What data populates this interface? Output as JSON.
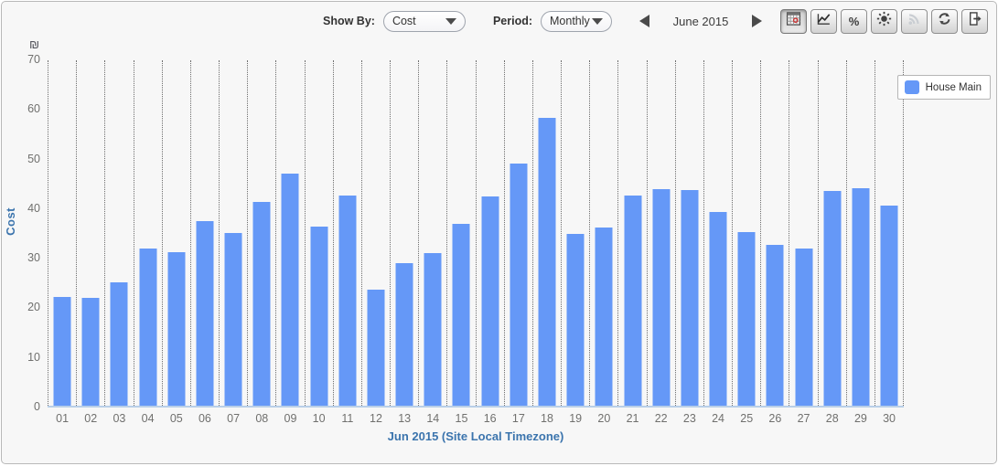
{
  "toolbar": {
    "show_by_label": "Show By:",
    "show_by_value": "Cost",
    "period_label": "Period:",
    "period_value": "Monthly",
    "date_label": "June 2015",
    "buttons": [
      {
        "name": "table-view-button",
        "icon": "table-grid-icon",
        "state": "active"
      },
      {
        "name": "line-chart-view-button",
        "icon": "line-chart-icon",
        "state": "normal"
      },
      {
        "name": "percent-view-button",
        "icon": "percent-icon",
        "state": "normal"
      },
      {
        "name": "weather-button",
        "icon": "sun-icon",
        "state": "normal"
      },
      {
        "name": "live-feed-button",
        "icon": "rss-icon",
        "state": "disabled"
      },
      {
        "name": "refresh-button",
        "icon": "refresh-icon",
        "state": "normal"
      },
      {
        "name": "export-button",
        "icon": "export-icon",
        "state": "normal"
      }
    ],
    "percent_glyph": "%"
  },
  "legend": {
    "position": "right",
    "items": [
      {
        "label": "House Main",
        "color": "#6598f7"
      }
    ]
  },
  "chart_data": {
    "type": "bar",
    "title": "",
    "xlabel": "Jun 2015 (Site Local Timezone)",
    "ylabel": "Cost",
    "currency_symbol": "₪",
    "ylim": [
      0,
      70
    ],
    "yticks": [
      0,
      10,
      20,
      30,
      40,
      50,
      60,
      70
    ],
    "grid": "vertical-dotted",
    "legend_position": "right",
    "categories": [
      "01",
      "02",
      "03",
      "04",
      "05",
      "06",
      "07",
      "08",
      "09",
      "10",
      "11",
      "12",
      "13",
      "14",
      "15",
      "16",
      "17",
      "18",
      "19",
      "20",
      "21",
      "22",
      "23",
      "24",
      "25",
      "26",
      "27",
      "28",
      "29",
      "30"
    ],
    "series": [
      {
        "name": "House Main",
        "color": "#6598f7",
        "values": [
          22.0,
          21.8,
          24.8,
          31.6,
          31.0,
          37.2,
          34.8,
          41.0,
          46.8,
          36.2,
          42.3,
          23.4,
          28.7,
          30.7,
          36.6,
          42.1,
          48.9,
          58.1,
          34.6,
          36.0,
          42.3,
          43.7,
          43.5,
          39.0,
          35.0,
          32.4,
          31.6,
          43.3,
          43.9,
          40.3
        ]
      }
    ]
  },
  "colors": {
    "bar": "#6598f7",
    "axis_title": "#3b74ad",
    "tick_label": "#70706e",
    "baseline": "#b9cfe8",
    "widget_background": "#f7f7f7"
  }
}
